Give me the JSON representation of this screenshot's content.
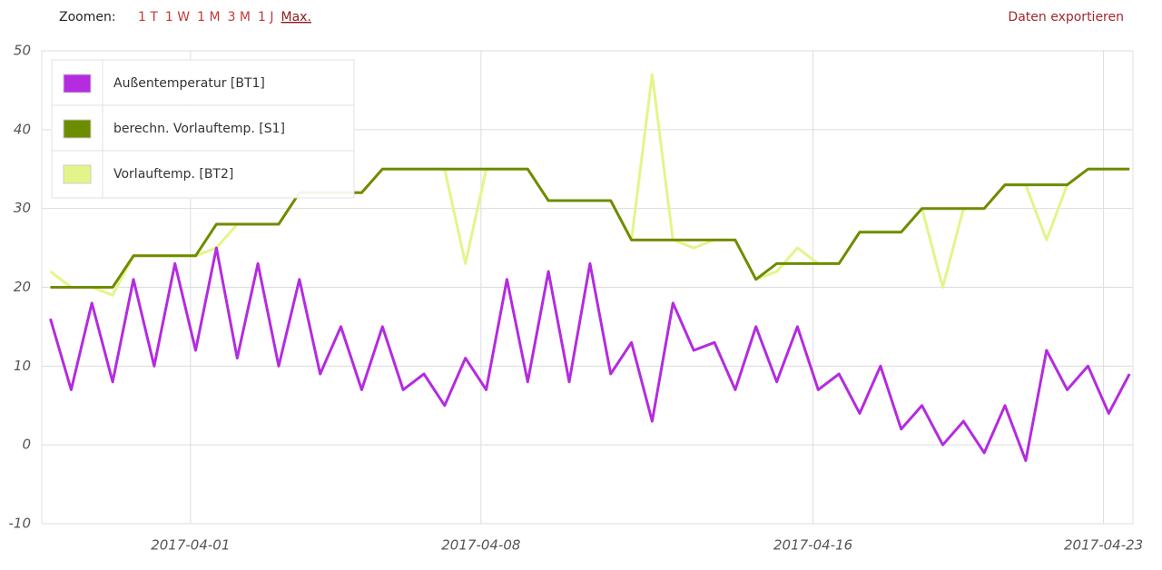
{
  "toolbar": {
    "zoom_label": "Zoomen:",
    "zoom_options": [
      "1 T",
      "1 W",
      "1 M",
      "3 M",
      "1 J",
      "Max."
    ],
    "export": "Daten exportieren"
  },
  "chart_data": {
    "type": "line",
    "x": [
      "2017-03-28T15:00",
      "2017-03-29T03:00",
      "2017-03-29T15:00",
      "2017-03-30T03:00",
      "2017-03-30T15:00",
      "2017-03-31T03:00",
      "2017-03-31T15:00",
      "2017-04-01T03:00",
      "2017-04-01T15:00",
      "2017-04-02T03:00",
      "2017-04-02T15:00",
      "2017-04-03T03:00",
      "2017-04-03T15:00",
      "2017-04-04T03:00",
      "2017-04-04T15:00",
      "2017-04-05T03:00",
      "2017-04-05T15:00",
      "2017-04-06T03:00",
      "2017-04-06T15:00",
      "2017-04-07T03:00",
      "2017-04-07T15:00",
      "2017-04-08T03:00",
      "2017-04-08T15:00",
      "2017-04-09T03:00",
      "2017-04-09T15:00",
      "2017-04-10T03:00",
      "2017-04-10T15:00",
      "2017-04-11T03:00",
      "2017-04-11T15:00",
      "2017-04-12T03:00",
      "2017-04-12T15:00",
      "2017-04-13T03:00",
      "2017-04-13T15:00",
      "2017-04-14T03:00",
      "2017-04-14T15:00",
      "2017-04-15T03:00",
      "2017-04-15T15:00",
      "2017-04-16T03:00",
      "2017-04-16T15:00",
      "2017-04-17T03:00",
      "2017-04-17T15:00",
      "2017-04-18T03:00",
      "2017-04-18T15:00",
      "2017-04-19T03:00",
      "2017-04-19T15:00",
      "2017-04-20T03:00",
      "2017-04-20T15:00",
      "2017-04-21T03:00",
      "2017-04-21T15:00",
      "2017-04-22T03:00",
      "2017-04-22T15:00",
      "2017-04-23T03:00",
      "2017-04-23T15:00"
    ],
    "series": [
      {
        "name": "Außentemperatur [BT1]",
        "color": "#b42be0",
        "values": [
          16,
          7,
          18,
          8,
          21,
          10,
          23,
          12,
          25,
          11,
          23,
          10,
          21,
          9,
          15,
          7,
          15,
          7,
          9,
          5,
          11,
          7,
          21,
          8,
          22,
          8,
          23,
          9,
          13,
          3,
          18,
          12,
          13,
          7,
          15,
          8,
          15,
          7,
          9,
          4,
          10,
          2,
          5,
          0,
          3,
          -1,
          5,
          -2,
          12,
          7,
          10,
          4,
          9
        ]
      },
      {
        "name": "berechn. Vorlauftemp. [S1]",
        "color": "#6e8c00",
        "values": [
          20,
          20,
          20,
          20,
          24,
          24,
          24,
          24,
          28,
          28,
          28,
          28,
          32,
          32,
          32,
          32,
          35,
          35,
          35,
          35,
          35,
          35,
          35,
          35,
          31,
          31,
          31,
          31,
          26,
          26,
          26,
          26,
          26,
          26,
          21,
          23,
          23,
          23,
          23,
          27,
          27,
          27,
          30,
          30,
          30,
          30,
          33,
          33,
          33,
          33,
          35,
          35,
          35
        ]
      },
      {
        "name": "Vorlauftemp. [BT2]",
        "color": "#e3f58a",
        "values": [
          22,
          20,
          20,
          19,
          24,
          24,
          24,
          24,
          25,
          28,
          28,
          28,
          32,
          32,
          32,
          32,
          35,
          35,
          35,
          35,
          23,
          35,
          35,
          35,
          31,
          31,
          31,
          31,
          26,
          47,
          26,
          25,
          26,
          26,
          21,
          22,
          25,
          23,
          23,
          27,
          27,
          27,
          30,
          20,
          30,
          30,
          33,
          33,
          26,
          33,
          35,
          35,
          35
        ]
      }
    ],
    "xlim": [
      "2017-03-28T10:00",
      "2017-04-23T17:00"
    ],
    "xticks": [
      "2017-04-01",
      "2017-04-08",
      "2017-04-16",
      "2017-04-23"
    ],
    "ylim": [
      -10,
      50
    ],
    "yticks": [
      -10,
      0,
      10,
      20,
      30,
      40,
      50
    ],
    "grid": true,
    "legend": "top-left"
  }
}
